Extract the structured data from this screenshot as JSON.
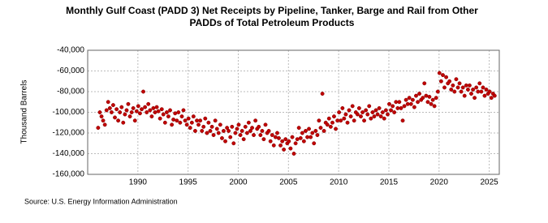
{
  "chart_data": {
    "type": "scatter",
    "title": [
      "Monthly Gulf Coast (PADD 3) Net Receipts by Pipeline, Tanker, Barge and Rail from Other",
      "PADDs of Total Petroleum Products"
    ],
    "y_label": "Thousand Barrels",
    "source": "Source: U.S. Energy Information Administration",
    "xlim": [
      1985,
      2026
    ],
    "xticks": [
      1990,
      1995,
      2000,
      2005,
      2010,
      2015,
      2020,
      2025
    ],
    "ylim": [
      -160000,
      -40000
    ],
    "yticks": [
      {
        "value": -40000,
        "label": "-40,000"
      },
      {
        "value": -60000,
        "label": "-60,000"
      },
      {
        "value": -80000,
        "label": "-80,000"
      },
      {
        "value": -100000,
        "label": "-100,000"
      },
      {
        "value": -120000,
        "label": "-120,000"
      },
      {
        "value": -140000,
        "label": "-140,000"
      },
      {
        "value": -160000,
        "label": "-160,000"
      }
    ],
    "grid": true,
    "color": "#c00000",
    "x": [
      1986.04,
      1986.21,
      1986.38,
      1986.54,
      1986.71,
      1986.88,
      1987.04,
      1987.21,
      1987.38,
      1987.54,
      1987.71,
      1987.88,
      1988.04,
      1988.21,
      1988.38,
      1988.54,
      1988.71,
      1988.88,
      1989.04,
      1989.21,
      1989.38,
      1989.54,
      1989.71,
      1989.88,
      1990.04,
      1990.21,
      1990.38,
      1990.54,
      1990.71,
      1990.88,
      1991.04,
      1991.21,
      1991.38,
      1991.54,
      1991.71,
      1991.88,
      1992.04,
      1992.21,
      1992.38,
      1992.54,
      1992.71,
      1992.88,
      1993.04,
      1993.21,
      1993.38,
      1993.54,
      1993.71,
      1993.88,
      1994.04,
      1994.21,
      1994.38,
      1994.54,
      1994.71,
      1994.88,
      1995.04,
      1995.21,
      1995.38,
      1995.54,
      1995.71,
      1995.88,
      1996.04,
      1996.21,
      1996.38,
      1996.54,
      1996.71,
      1996.88,
      1997.04,
      1997.21,
      1997.38,
      1997.54,
      1997.71,
      1997.88,
      1998.04,
      1998.21,
      1998.38,
      1998.54,
      1998.71,
      1998.88,
      1999.04,
      1999.21,
      1999.38,
      1999.54,
      1999.71,
      1999.88,
      2000.04,
      2000.21,
      2000.38,
      2000.54,
      2000.71,
      2000.88,
      2001.04,
      2001.21,
      2001.38,
      2001.54,
      2001.71,
      2001.88,
      2002.04,
      2002.21,
      2002.38,
      2002.54,
      2002.71,
      2002.88,
      2003.04,
      2003.21,
      2003.38,
      2003.54,
      2003.71,
      2003.88,
      2004.04,
      2004.21,
      2004.38,
      2004.54,
      2004.71,
      2004.88,
      2005.04,
      2005.21,
      2005.38,
      2005.54,
      2005.71,
      2005.88,
      2006.04,
      2006.21,
      2006.38,
      2006.54,
      2006.71,
      2006.88,
      2007.04,
      2007.21,
      2007.38,
      2007.54,
      2007.71,
      2007.88,
      2008.04,
      2008.21,
      2008.38,
      2008.54,
      2008.71,
      2008.88,
      2009.04,
      2009.21,
      2009.38,
      2009.54,
      2009.71,
      2009.88,
      2010.04,
      2010.21,
      2010.38,
      2010.54,
      2010.71,
      2010.88,
      2011.04,
      2011.21,
      2011.38,
      2011.54,
      2011.71,
      2011.88,
      2012.04,
      2012.21,
      2012.38,
      2012.54,
      2012.71,
      2012.88,
      2013.04,
      2013.21,
      2013.38,
      2013.54,
      2013.71,
      2013.88,
      2014.04,
      2014.21,
      2014.38,
      2014.54,
      2014.71,
      2014.88,
      2015.04,
      2015.21,
      2015.38,
      2015.54,
      2015.71,
      2015.88,
      2016.04,
      2016.21,
      2016.38,
      2016.54,
      2016.71,
      2016.88,
      2017.04,
      2017.21,
      2017.38,
      2017.54,
      2017.71,
      2017.88,
      2018.04,
      2018.21,
      2018.38,
      2018.54,
      2018.71,
      2018.88,
      2019.04,
      2019.21,
      2019.38,
      2019.54,
      2019.71,
      2019.88,
      2020.04,
      2020.21,
      2020.38,
      2020.54,
      2020.71,
      2020.88,
      2021.04,
      2021.21,
      2021.38,
      2021.54,
      2021.71,
      2021.88,
      2022.04,
      2022.21,
      2022.38,
      2022.54,
      2022.71,
      2022.88,
      2023.04,
      2023.21,
      2023.38,
      2023.54,
      2023.71,
      2023.88,
      2024.04,
      2024.21,
      2024.38,
      2024.54,
      2024.71,
      2024.88,
      2025.04,
      2025.21,
      2025.38,
      2025.54
    ],
    "values": [
      -115000,
      -100000,
      -104000,
      -108000,
      -112000,
      -98000,
      -90000,
      -96000,
      -100000,
      -93000,
      -105000,
      -97000,
      -108000,
      -100000,
      -95000,
      -110000,
      -102000,
      -98000,
      -92000,
      -104000,
      -100000,
      -96000,
      -108000,
      -99000,
      -94000,
      -101000,
      -97000,
      -80000,
      -95000,
      -100000,
      -92000,
      -98000,
      -104000,
      -96000,
      -100000,
      -95000,
      -99000,
      -106000,
      -97000,
      -102000,
      -110000,
      -100000,
      -104000,
      -98000,
      -112000,
      -107000,
      -101000,
      -108000,
      -100000,
      -110000,
      -104000,
      -98000,
      -108000,
      -112000,
      -106000,
      -115000,
      -110000,
      -104000,
      -118000,
      -108000,
      -112000,
      -108000,
      -118000,
      -114000,
      -106000,
      -120000,
      -110000,
      -118000,
      -114000,
      -122000,
      -108000,
      -116000,
      -120000,
      -112000,
      -125000,
      -118000,
      -128000,
      -115000,
      -118000,
      -124000,
      -114000,
      -130000,
      -120000,
      -116000,
      -112000,
      -122000,
      -118000,
      -126000,
      -114000,
      -120000,
      -110000,
      -118000,
      -115000,
      -122000,
      -108000,
      -116000,
      -114000,
      -122000,
      -118000,
      -126000,
      -112000,
      -120000,
      -118000,
      -128000,
      -122000,
      -132000,
      -124000,
      -120000,
      -125000,
      -132000,
      -128000,
      -136000,
      -126000,
      -130000,
      -128000,
      -135000,
      -124000,
      -140000,
      -130000,
      -126000,
      -115000,
      -125000,
      -120000,
      -128000,
      -118000,
      -124000,
      -116000,
      -124000,
      -120000,
      -130000,
      -118000,
      -122000,
      -108000,
      -115000,
      -82000,
      -118000,
      -110000,
      -112000,
      -106000,
      -114000,
      -110000,
      -104000,
      -116000,
      -108000,
      -100000,
      -108000,
      -96000,
      -106000,
      -102000,
      -110000,
      -98000,
      -104000,
      -94000,
      -108000,
      -100000,
      -102000,
      -96000,
      -104000,
      -100000,
      -108000,
      -98000,
      -102000,
      -94000,
      -106000,
      -100000,
      -104000,
      -98000,
      -102000,
      -96000,
      -104000,
      -100000,
      -106000,
      -98000,
      -102000,
      -92000,
      -98000,
      -94000,
      -100000,
      -90000,
      -96000,
      -90000,
      -96000,
      -108000,
      -94000,
      -88000,
      -92000,
      -86000,
      -92000,
      -88000,
      -95000,
      -84000,
      -90000,
      -82000,
      -88000,
      -86000,
      -72000,
      -84000,
      -90000,
      -85000,
      -92000,
      -88000,
      -94000,
      -86000,
      -80000,
      -62000,
      -70000,
      -64000,
      -76000,
      -66000,
      -72000,
      -70000,
      -78000,
      -74000,
      -80000,
      -68000,
      -76000,
      -72000,
      -80000,
      -76000,
      -84000,
      -74000,
      -78000,
      -74000,
      -82000,
      -78000,
      -86000,
      -76000,
      -80000,
      -72000,
      -80000,
      -76000,
      -84000,
      -78000,
      -82000,
      -80000,
      -86000,
      -82000,
      -84000
    ]
  }
}
